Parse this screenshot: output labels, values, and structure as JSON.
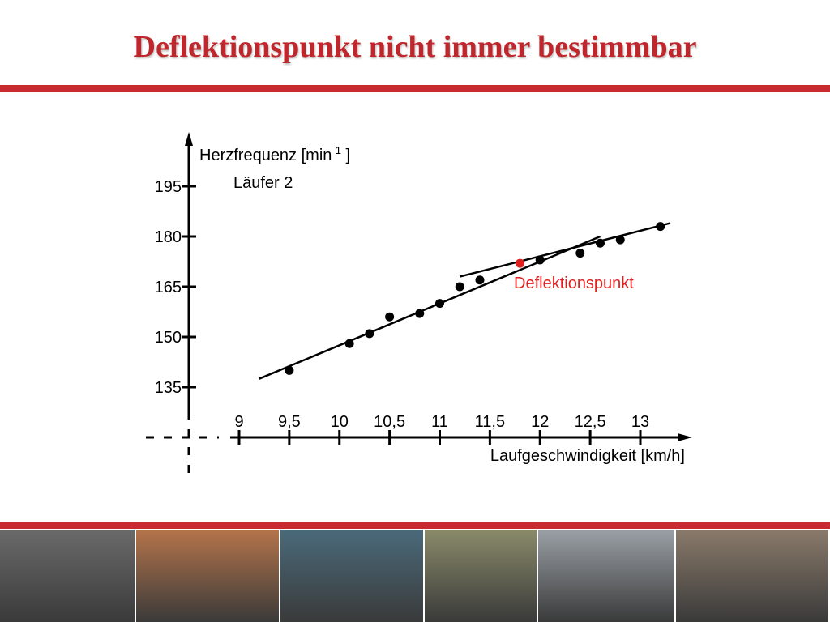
{
  "slide": {
    "title": "Deflektionspunkt nicht immer bestimmbar",
    "accent_color": "#c92a32"
  },
  "chart_data": {
    "type": "scatter",
    "ylabel_base": "Herzfrequenz [min",
    "ylabel_sup": "-1",
    "ylabel_close": " ]",
    "xlabel": "Laufgeschwindigkeit [km/h]",
    "subtitle": "Läufer 2",
    "annotation": "Deflektionspunkt",
    "annotation_color": "#e02020",
    "x_ticks": [
      9,
      9.5,
      10,
      10.5,
      11,
      11.5,
      12,
      12.5,
      13
    ],
    "x_tick_labels": [
      "9",
      "9,5",
      "10",
      "10,5",
      "11",
      "11,5",
      "12",
      "12,5",
      "13"
    ],
    "y_ticks": [
      135,
      150,
      165,
      180,
      195
    ],
    "y_tick_labels": [
      "135",
      "150",
      "165",
      "180",
      "195"
    ],
    "points": [
      {
        "x": 9.5,
        "y": 140
      },
      {
        "x": 10.1,
        "y": 148
      },
      {
        "x": 10.3,
        "y": 151
      },
      {
        "x": 10.5,
        "y": 156
      },
      {
        "x": 10.8,
        "y": 157
      },
      {
        "x": 11.0,
        "y": 160
      },
      {
        "x": 11.2,
        "y": 165
      },
      {
        "x": 11.4,
        "y": 167
      },
      {
        "x": 11.8,
        "y": 172
      },
      {
        "x": 12.0,
        "y": 173
      },
      {
        "x": 12.4,
        "y": 175
      },
      {
        "x": 12.6,
        "y": 178
      },
      {
        "x": 12.8,
        "y": 179
      },
      {
        "x": 13.2,
        "y": 183
      }
    ],
    "deflection_point": {
      "x": 11.8,
      "y": 172
    },
    "lines": [
      {
        "name": "lower",
        "x1": 9.2,
        "y1": 137.5,
        "x2": 12.6,
        "y2": 180
      },
      {
        "name": "upper",
        "x1": 11.2,
        "y1": 168,
        "x2": 13.3,
        "y2": 184
      }
    ]
  },
  "photos": [
    {
      "name": "photo-team-training",
      "color": "#6a6a6a"
    },
    {
      "name": "photo-ball-game-gym",
      "color": "#b5744a"
    },
    {
      "name": "photo-rafting",
      "color": "#4a6a7a"
    },
    {
      "name": "photo-runners",
      "color": "#8a8a6a"
    },
    {
      "name": "photo-basketball",
      "color": "#9aa0a6"
    },
    {
      "name": "photo-gym-exercise",
      "color": "#8a7a6a"
    }
  ]
}
